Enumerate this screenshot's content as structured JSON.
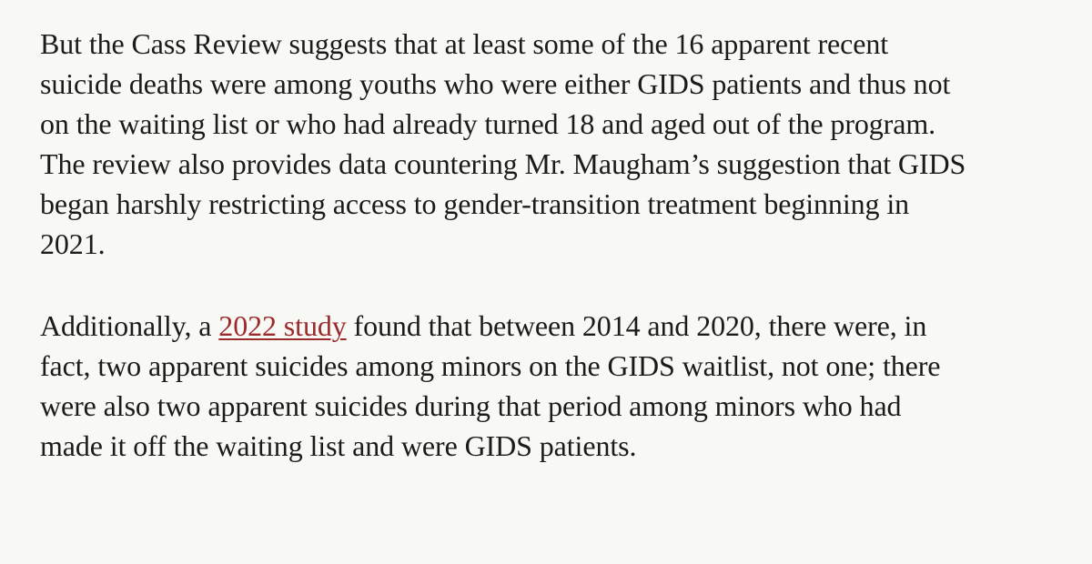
{
  "article": {
    "paragraph1": {
      "lines": [
        "But the Cass Review suggests that at least some of the 16 apparent recent",
        "suicide deaths were among youths who were either GIDS patients and thus not",
        "on the waiting list or who had already turned 18 and aged out of the program.",
        "The review also provides data countering Mr. Maugham’s suggestion that GIDS",
        "began harshly restricting access to gender-transition treatment beginning in",
        "2021."
      ]
    },
    "paragraph2": {
      "line1_before_link": "Additionally, a ",
      "link_text": "2022 study",
      "line1_after_link": " found that between 2014 and 2020, there were, in",
      "lines": [
        "fact, two apparent suicides among minors on the GIDS waitlist, not one; there",
        "were also two apparent suicides during that period among minors who had",
        "made it off the waiting list and were GIDS patients."
      ]
    }
  },
  "colors": {
    "background": "#f8f8f4",
    "text": "#1b1b1b",
    "link": "#9b2a2d"
  }
}
